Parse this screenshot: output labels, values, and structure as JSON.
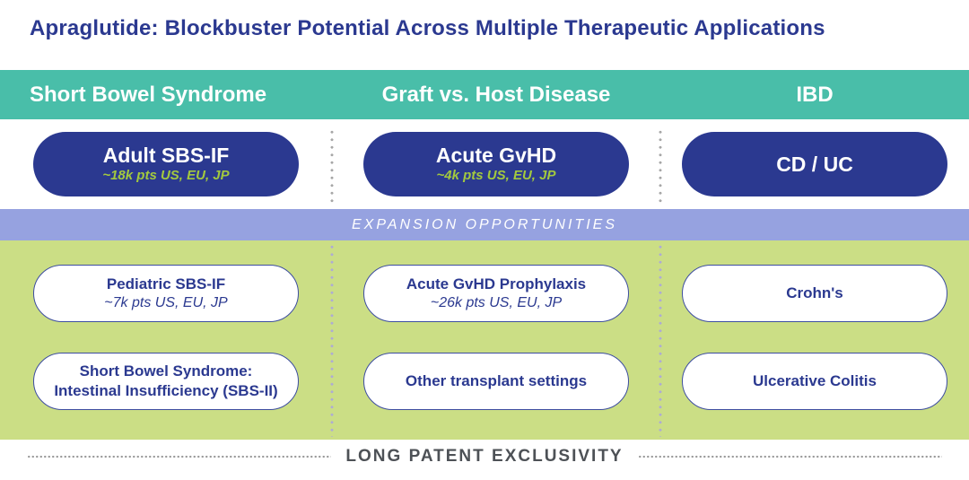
{
  "title": "Apraglutide: Blockbuster Potential Across Multiple Therapeutic Applications",
  "expansion_band_label": "EXPANSION OPPORTUNITIES",
  "footer": "LONG PATENT EXCLUSIVITY",
  "colors": {
    "navy": "#2B3990",
    "teal": "#49BEA9",
    "periwinkle": "#96A2E0",
    "green": "#CBDE85",
    "lime_subtitle": "#A3C93E",
    "footer_text": "#4D5156"
  },
  "columns": [
    {
      "header": "Short Bowel Syndrome",
      "lead": {
        "title": "Adult SBS-IF",
        "subtitle": "~18k pts US, EU, JP"
      },
      "expansion": [
        {
          "title": "Pediatric SBS-IF",
          "subtitle": "~7k pts US, EU, JP"
        },
        {
          "title": "Short Bowel Syndrome:",
          "title2": "Intestinal Insufficiency (SBS-II)"
        }
      ]
    },
    {
      "header": "Graft vs. Host Disease",
      "lead": {
        "title": "Acute GvHD",
        "subtitle": "~4k pts US, EU, JP"
      },
      "expansion": [
        {
          "title": "Acute GvHD Prophylaxis",
          "subtitle": "~26k pts US, EU, JP"
        },
        {
          "title": "Other transplant settings"
        }
      ]
    },
    {
      "header": "IBD",
      "lead": {
        "title": "CD / UC"
      },
      "expansion": [
        {
          "title": "Crohn's"
        },
        {
          "title": "Ulcerative Colitis"
        }
      ]
    }
  ]
}
